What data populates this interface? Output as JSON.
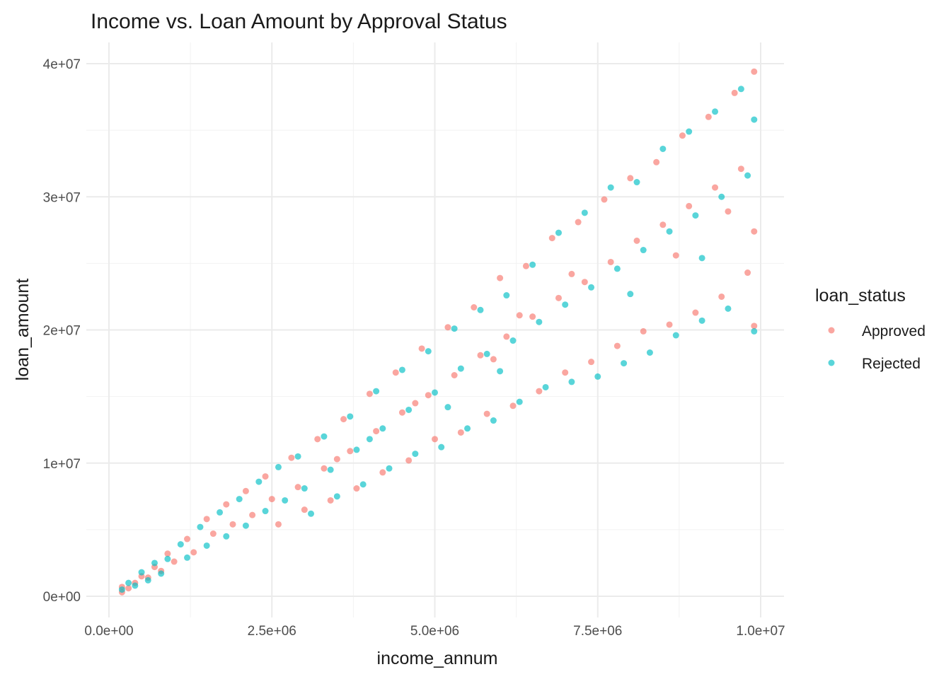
{
  "chart_data": {
    "type": "scatter",
    "title": "Income vs. Loan Amount by Approval Status",
    "xlabel": "income_annum",
    "ylabel": "loan_amount",
    "xlim": [
      0,
      10000000
    ],
    "ylim": [
      0,
      40000000
    ],
    "x_ticks": [
      {
        "value": 0,
        "label": "0.0e+00"
      },
      {
        "value": 2500000,
        "label": "2.5e+06"
      },
      {
        "value": 5000000,
        "label": "5.0e+06"
      },
      {
        "value": 7500000,
        "label": "7.5e+06"
      },
      {
        "value": 10000000,
        "label": "1.0e+07"
      }
    ],
    "y_ticks": [
      {
        "value": 0,
        "label": "0e+00"
      },
      {
        "value": 10000000,
        "label": "1e+07"
      },
      {
        "value": 20000000,
        "label": "2e+07"
      },
      {
        "value": 30000000,
        "label": "3e+07"
      },
      {
        "value": 40000000,
        "label": "4e+07"
      }
    ],
    "grid": true,
    "legend": {
      "title": "loan_status",
      "position": "right"
    },
    "series": [
      {
        "name": "Approved",
        "color": "#F8766D",
        "points": [
          [
            200000,
            300000
          ],
          [
            200000,
            700000
          ],
          [
            300000,
            600000
          ],
          [
            400000,
            1000000
          ],
          [
            500000,
            1500000
          ],
          [
            600000,
            1400000
          ],
          [
            700000,
            2200000
          ],
          [
            800000,
            1900000
          ],
          [
            900000,
            3200000
          ],
          [
            1000000,
            2600000
          ],
          [
            1200000,
            4300000
          ],
          [
            1300000,
            3300000
          ],
          [
            1500000,
            5800000
          ],
          [
            1600000,
            4700000
          ],
          [
            1800000,
            6900000
          ],
          [
            1900000,
            5400000
          ],
          [
            2100000,
            7900000
          ],
          [
            2200000,
            6100000
          ],
          [
            2400000,
            9000000
          ],
          [
            2500000,
            7300000
          ],
          [
            2600000,
            5400000
          ],
          [
            2800000,
            10400000
          ],
          [
            2900000,
            8200000
          ],
          [
            3000000,
            6500000
          ],
          [
            3200000,
            11800000
          ],
          [
            3300000,
            9600000
          ],
          [
            3400000,
            7200000
          ],
          [
            3600000,
            13300000
          ],
          [
            3700000,
            10900000
          ],
          [
            3800000,
            8100000
          ],
          [
            4000000,
            15200000
          ],
          [
            4100000,
            12400000
          ],
          [
            4200000,
            9300000
          ],
          [
            4400000,
            16800000
          ],
          [
            4500000,
            13800000
          ],
          [
            4600000,
            10200000
          ],
          [
            4800000,
            18600000
          ],
          [
            4900000,
            15100000
          ],
          [
            5000000,
            11800000
          ],
          [
            5200000,
            20200000
          ],
          [
            5300000,
            16600000
          ],
          [
            5400000,
            12300000
          ],
          [
            5600000,
            21700000
          ],
          [
            5700000,
            18100000
          ],
          [
            5800000,
            13700000
          ],
          [
            6000000,
            23900000
          ],
          [
            6100000,
            19500000
          ],
          [
            6200000,
            14300000
          ],
          [
            6400000,
            24800000
          ],
          [
            6500000,
            21000000
          ],
          [
            6600000,
            15400000
          ],
          [
            6800000,
            26900000
          ],
          [
            6900000,
            22400000
          ],
          [
            7000000,
            16800000
          ],
          [
            7200000,
            28100000
          ],
          [
            7300000,
            23600000
          ],
          [
            7400000,
            17600000
          ],
          [
            7600000,
            29800000
          ],
          [
            7700000,
            25100000
          ],
          [
            7800000,
            18800000
          ],
          [
            8000000,
            31400000
          ],
          [
            8100000,
            26700000
          ],
          [
            8200000,
            19900000
          ],
          [
            8400000,
            32600000
          ],
          [
            8500000,
            27900000
          ],
          [
            8600000,
            20400000
          ],
          [
            8800000,
            34600000
          ],
          [
            8900000,
            29300000
          ],
          [
            9000000,
            21300000
          ],
          [
            9200000,
            36000000
          ],
          [
            9300000,
            30700000
          ],
          [
            9400000,
            22500000
          ],
          [
            9600000,
            37800000
          ],
          [
            9700000,
            32100000
          ],
          [
            9800000,
            24300000
          ],
          [
            9900000,
            39400000
          ],
          [
            9900000,
            27400000
          ],
          [
            9900000,
            20300000
          ],
          [
            7100000,
            24200000
          ],
          [
            5900000,
            17800000
          ],
          [
            4700000,
            14500000
          ],
          [
            3500000,
            10300000
          ],
          [
            8700000,
            25600000
          ],
          [
            9500000,
            28900000
          ],
          [
            6300000,
            21100000
          ]
        ]
      },
      {
        "name": "Rejected",
        "color": "#00BFC4",
        "points": [
          [
            200000,
            500000
          ],
          [
            300000,
            1000000
          ],
          [
            400000,
            800000
          ],
          [
            500000,
            1800000
          ],
          [
            600000,
            1200000
          ],
          [
            700000,
            2500000
          ],
          [
            800000,
            1700000
          ],
          [
            900000,
            2800000
          ],
          [
            1100000,
            3900000
          ],
          [
            1200000,
            2900000
          ],
          [
            1400000,
            5200000
          ],
          [
            1500000,
            3800000
          ],
          [
            1700000,
            6300000
          ],
          [
            1800000,
            4500000
          ],
          [
            2000000,
            7300000
          ],
          [
            2100000,
            5300000
          ],
          [
            2300000,
            8600000
          ],
          [
            2400000,
            6400000
          ],
          [
            2600000,
            9700000
          ],
          [
            2700000,
            7200000
          ],
          [
            2900000,
            10500000
          ],
          [
            3000000,
            8100000
          ],
          [
            3100000,
            6200000
          ],
          [
            3300000,
            12000000
          ],
          [
            3400000,
            9500000
          ],
          [
            3500000,
            7500000
          ],
          [
            3700000,
            13500000
          ],
          [
            3800000,
            11000000
          ],
          [
            3900000,
            8400000
          ],
          [
            4100000,
            15400000
          ],
          [
            4200000,
            12600000
          ],
          [
            4300000,
            9600000
          ],
          [
            4500000,
            17000000
          ],
          [
            4600000,
            14000000
          ],
          [
            4700000,
            10700000
          ],
          [
            4900000,
            18400000
          ],
          [
            5000000,
            15300000
          ],
          [
            5100000,
            11200000
          ],
          [
            5300000,
            20100000
          ],
          [
            5400000,
            17100000
          ],
          [
            5500000,
            12600000
          ],
          [
            5700000,
            21500000
          ],
          [
            5800000,
            18200000
          ],
          [
            5900000,
            13200000
          ],
          [
            6100000,
            22600000
          ],
          [
            6200000,
            19200000
          ],
          [
            6300000,
            14600000
          ],
          [
            6500000,
            24900000
          ],
          [
            6600000,
            20600000
          ],
          [
            6700000,
            15700000
          ],
          [
            6900000,
            27300000
          ],
          [
            7000000,
            21900000
          ],
          [
            7100000,
            16100000
          ],
          [
            7300000,
            28800000
          ],
          [
            7400000,
            23200000
          ],
          [
            7500000,
            16500000
          ],
          [
            7700000,
            30700000
          ],
          [
            7800000,
            24600000
          ],
          [
            7900000,
            17500000
          ],
          [
            8100000,
            31100000
          ],
          [
            8200000,
            26000000
          ],
          [
            8300000,
            18300000
          ],
          [
            8500000,
            33600000
          ],
          [
            8600000,
            27400000
          ],
          [
            8700000,
            19600000
          ],
          [
            8900000,
            34900000
          ],
          [
            9000000,
            28600000
          ],
          [
            9100000,
            20700000
          ],
          [
            9300000,
            36400000
          ],
          [
            9400000,
            30000000
          ],
          [
            9500000,
            21600000
          ],
          [
            9700000,
            38100000
          ],
          [
            9800000,
            31600000
          ],
          [
            9900000,
            19900000
          ],
          [
            9900000,
            35800000
          ],
          [
            6000000,
            16900000
          ],
          [
            5200000,
            14200000
          ],
          [
            4000000,
            11800000
          ],
          [
            8000000,
            22700000
          ],
          [
            9100000,
            25400000
          ]
        ]
      }
    ]
  }
}
